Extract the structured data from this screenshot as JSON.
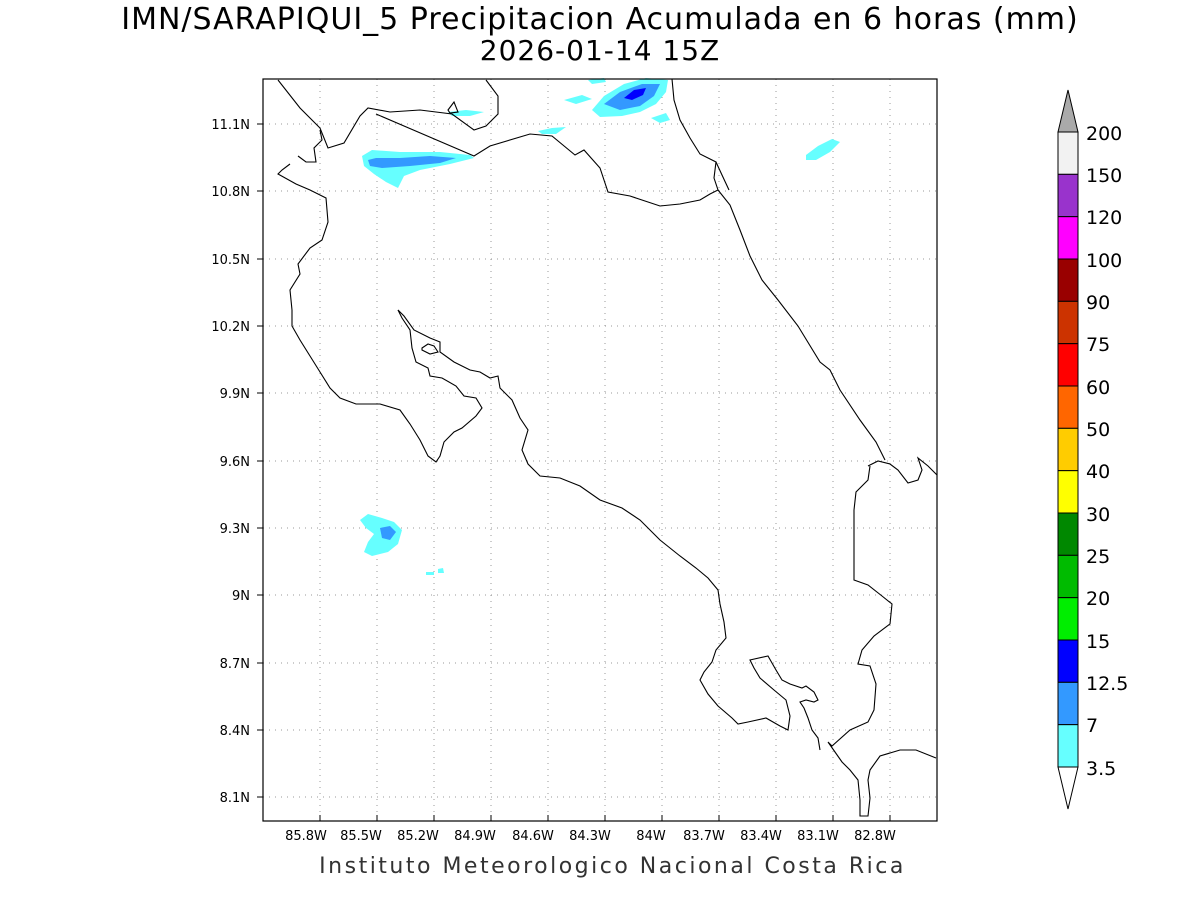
{
  "title": {
    "line1": "IMN/SARAPIQUI_5 Precipitacion Acumulada en 6 horas (mm)",
    "line2": "2026-01-14 15Z"
  },
  "footer": "Instituto Meteorologico Nacional Costa Rica",
  "map": {
    "lon_range": [
      -86.0,
      -83.0
    ],
    "lat_range": [
      8.0,
      11.2
    ],
    "x_ticks": [
      "85.8W",
      "85.5W",
      "85.2W",
      "84.9W",
      "84.6W",
      "84.3W",
      "84W",
      "83.7W",
      "83.4W",
      "83.1W",
      "82.8W"
    ],
    "y_ticks": [
      "11.1N",
      "10.8N",
      "10.5N",
      "10.2N",
      "9.9N",
      "9.6N",
      "9.3N",
      "9N",
      "8.7N",
      "8.4N",
      "8.1N"
    ],
    "grid": "dotted"
  },
  "colorbar": {
    "labels": [
      "200",
      "150",
      "120",
      "100",
      "90",
      "75",
      "60",
      "50",
      "40",
      "30",
      "25",
      "20",
      "15",
      "12.5",
      "7",
      "3.5"
    ],
    "colors": [
      "#f2f2f2",
      "#9933cc",
      "#ff00ff",
      "#990000",
      "#cc3300",
      "#ff0000",
      "#ff6600",
      "#ffcc00",
      "#ffff00",
      "#008800",
      "#00bb00",
      "#00ee00",
      "#0000ff",
      "#3399ff",
      "#66ffff"
    ],
    "top_arrow_color": "#aaaaaa",
    "bottom_arrow_color": "#ffffff"
  }
}
